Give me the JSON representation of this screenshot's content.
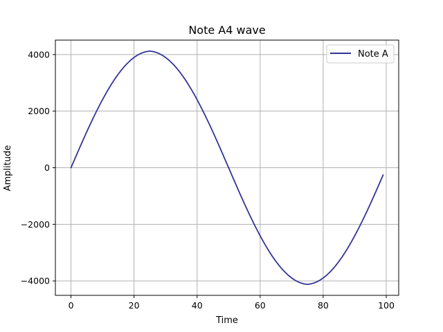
{
  "chart_data": {
    "type": "line",
    "title": "Note A4 wave",
    "xlabel": "Time",
    "ylabel": "Amplitude",
    "xlim": [
      -4.95,
      103.95
    ],
    "ylim": [
      -4510,
      4510
    ],
    "xticks": [
      0,
      20,
      40,
      60,
      80,
      100
    ],
    "yticks": [
      -4000,
      -2000,
      0,
      2000,
      4000
    ],
    "xtick_labels": [
      "0",
      "20",
      "40",
      "60",
      "80",
      "100"
    ],
    "ytick_labels": [
      "−4000",
      "−2000",
      "0",
      "2000",
      "4000"
    ],
    "grid": true,
    "legend_position": "upper right",
    "series": [
      {
        "name": "Note A",
        "color": "#333399",
        "x": [
          0,
          1,
          2,
          3,
          4,
          5,
          6,
          7,
          8,
          9,
          10,
          11,
          12,
          13,
          14,
          15,
          16,
          17,
          18,
          19,
          20,
          21,
          22,
          23,
          24,
          25,
          26,
          27,
          28,
          29,
          30,
          31,
          32,
          33,
          34,
          35,
          36,
          37,
          38,
          39,
          40,
          41,
          42,
          43,
          44,
          45,
          46,
          47,
          48,
          49,
          50,
          51,
          52,
          53,
          54,
          55,
          56,
          57,
          58,
          59,
          60,
          61,
          62,
          63,
          64,
          65,
          66,
          67,
          68,
          69,
          70,
          71,
          72,
          73,
          74,
          75,
          76,
          77,
          78,
          79,
          80,
          81,
          82,
          83,
          84,
          85,
          86,
          87,
          88,
          89,
          90,
          91,
          92,
          93,
          94,
          95,
          96,
          97,
          98,
          99
        ],
        "y": [
          0,
          257,
          514,
          769,
          1020,
          1267,
          1509,
          1745,
          1973,
          2194,
          2406,
          2608,
          2801,
          2982,
          3152,
          3309,
          3454,
          3586,
          3703,
          3807,
          3897,
          3972,
          4032,
          4077,
          4107,
          4122,
          4107,
          4077,
          4032,
          3972,
          3897,
          3807,
          3703,
          3586,
          3454,
          3309,
          3152,
          2982,
          2801,
          2608,
          2406,
          2194,
          1973,
          1745,
          1509,
          1267,
          1020,
          769,
          514,
          257,
          0,
          -257,
          -514,
          -769,
          -1020,
          -1267,
          -1509,
          -1745,
          -1973,
          -2194,
          -2406,
          -2608,
          -2801,
          -2982,
          -3152,
          -3309,
          -3454,
          -3586,
          -3703,
          -3807,
          -3897,
          -3972,
          -4032,
          -4077,
          -4107,
          -4122,
          -4107,
          -4077,
          -4032,
          -3972,
          -3897,
          -3807,
          -3703,
          -3586,
          -3454,
          -3309,
          -3152,
          -2982,
          -2801,
          -2608,
          -2406,
          -2194,
          -1973,
          -1745,
          -1509,
          -1267,
          -1020,
          -769,
          -514,
          -257
        ]
      }
    ]
  }
}
